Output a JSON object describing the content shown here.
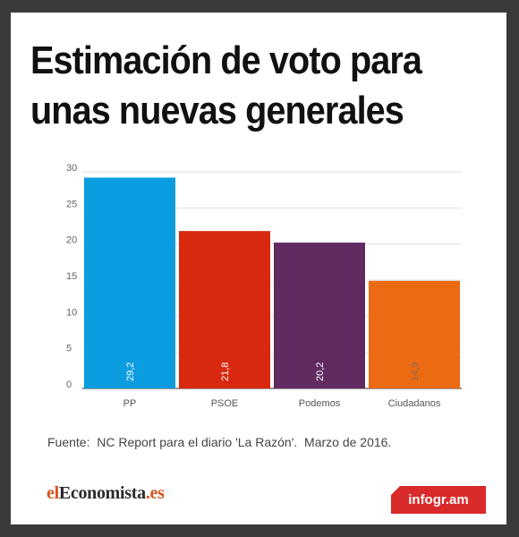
{
  "title_line1": "Estimación de voto para",
  "title_line2": "unas nuevas generales",
  "source": "Fuente:  NC Report para el diario 'La Razón'.  Marzo de 2016.",
  "brand": {
    "part1": "el",
    "part2": "Economista",
    "part3": ".es"
  },
  "badge": "infogr.am",
  "chart_data": {
    "type": "bar",
    "title": "Estimación de voto para unas nuevas generales",
    "categories": [
      "PP",
      "PSOE",
      "Podemos",
      "Ciudadanos"
    ],
    "values": [
      29.2,
      21.8,
      20.2,
      14.9
    ],
    "value_labels": [
      "29,2",
      "21,8",
      "20,2",
      "14,9"
    ],
    "colors": [
      "#0b9de0",
      "#d8290f",
      "#612b62",
      "#ec6a12"
    ],
    "ylim": [
      0,
      30
    ],
    "yticks": [
      0,
      5,
      10,
      15,
      20,
      25,
      30
    ],
    "grid": true,
    "xlabel": "",
    "ylabel": ""
  }
}
